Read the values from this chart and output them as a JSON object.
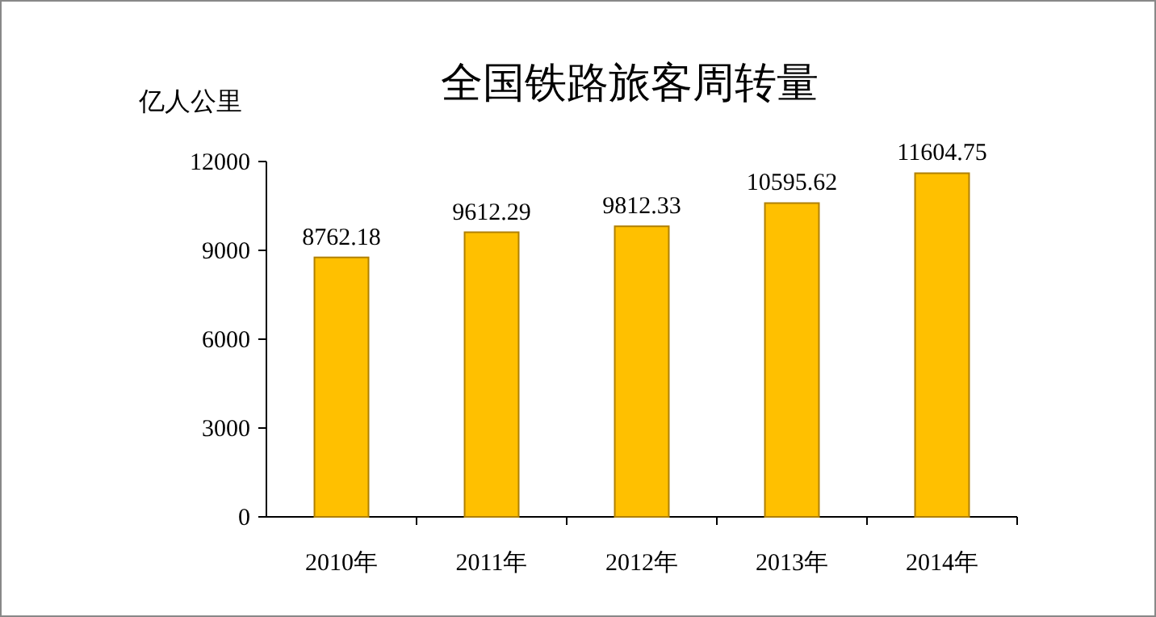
{
  "chart_data": {
    "type": "bar",
    "title": "全国铁路旅客周转量",
    "ylabel": "亿人公里",
    "categories": [
      "2010年",
      "2011年",
      "2012年",
      "2013年",
      "2014年"
    ],
    "values": [
      8762.18,
      9612.29,
      9812.33,
      10595.62,
      11604.75
    ],
    "color": "#ffc000",
    "ylim": [
      0,
      12000
    ],
    "yticks": [
      0,
      3000,
      6000,
      9000,
      12000
    ],
    "data_labels": true,
    "grid": false
  }
}
